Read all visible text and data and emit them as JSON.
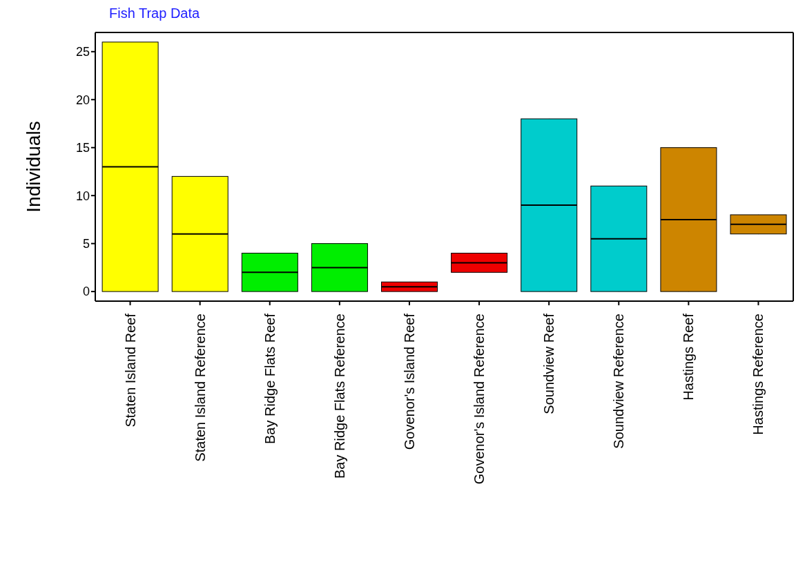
{
  "chart_data": {
    "type": "box",
    "title": "Fish Trap Data",
    "ylabel": "Individuals",
    "categories": [
      "Staten Island Reef",
      "Staten Island Reference",
      "Bay Ridge Flats Reef",
      "Bay Ridge Flats Reference",
      "Govenor's Island Reef",
      "Govenor's Island Reference",
      "Soundview Reef",
      "Soundview Reference",
      "Hastings Reef",
      "Hastings Reference"
    ],
    "boxes": [
      {
        "low": 0,
        "q1": 0,
        "median": 13,
        "q3": 26,
        "high": 26
      },
      {
        "low": 0,
        "q1": 0,
        "median": 6,
        "q3": 12,
        "high": 12
      },
      {
        "low": 0,
        "q1": 0,
        "median": 2,
        "q3": 4,
        "high": 4
      },
      {
        "low": 0,
        "q1": 0,
        "median": 2.5,
        "q3": 5,
        "high": 5
      },
      {
        "low": 0,
        "q1": 0,
        "median": 0.5,
        "q3": 1,
        "high": 1
      },
      {
        "low": 2,
        "q1": 2,
        "median": 3,
        "q3": 4,
        "high": 4
      },
      {
        "low": 0,
        "q1": 0,
        "median": 9,
        "q3": 18,
        "high": 18
      },
      {
        "low": 0,
        "q1": 0,
        "median": 5.5,
        "q3": 11,
        "high": 11
      },
      {
        "low": 0,
        "q1": 0,
        "median": 7.5,
        "q3": 15,
        "high": 15
      },
      {
        "low": 6,
        "q1": 6,
        "median": 7,
        "q3": 8,
        "high": 8
      }
    ],
    "colors": [
      "#ffff00",
      "#ffff00",
      "#00ee00",
      "#00ee00",
      "#ee0000",
      "#ee0000",
      "#00cccc",
      "#00cccc",
      "#cd8500",
      "#cd8500"
    ],
    "ylim": [
      -1,
      27
    ],
    "yticks": [
      0,
      5,
      10,
      15,
      20,
      25
    ],
    "grid": false,
    "legend": false
  }
}
